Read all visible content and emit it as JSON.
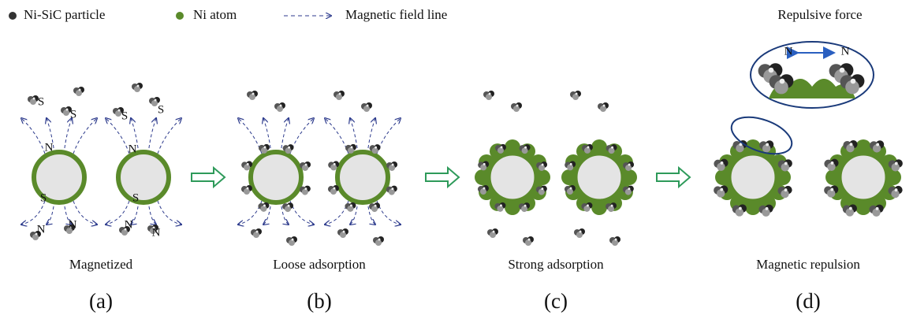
{
  "legend": [
    {
      "label": "Ni-SiC particle"
    },
    {
      "label": "Ni atom"
    },
    {
      "label": "Magnetic field line"
    }
  ],
  "panels": [
    {
      "caption": "Magnetized",
      "letter": "(a)",
      "poles": [
        "S",
        "S",
        "S",
        "S",
        "N",
        "N",
        "S",
        "S",
        "N",
        "N",
        "N",
        "N"
      ]
    },
    {
      "caption": "Loose adsorption",
      "letter": "(b)"
    },
    {
      "caption": "Strong adsorption",
      "letter": "(c)"
    },
    {
      "caption": "Magnetic repulsion",
      "letter": "(d)"
    }
  ],
  "inset": {
    "title": "Repulsive force",
    "poles": [
      "N",
      "N"
    ]
  }
}
